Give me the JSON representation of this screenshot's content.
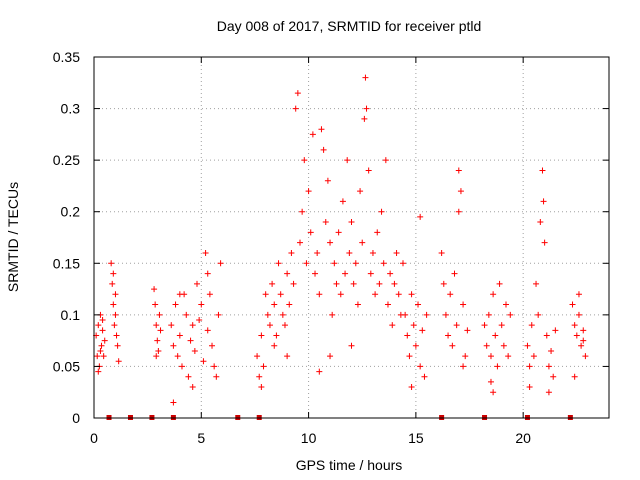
{
  "chart_data": {
    "type": "scatter",
    "title": "Day 008 of 2017, SRMTID for receiver ptld",
    "xlabel": "GPS time / hours",
    "ylabel": "SRMTID / TECUs",
    "xlim": [
      0,
      24
    ],
    "ylim": [
      0,
      0.35
    ],
    "x_ticks": [
      0,
      5,
      10,
      15,
      20
    ],
    "x_tick_labels": [
      "0",
      "5",
      "10",
      "15",
      "20"
    ],
    "y_ticks": [
      0,
      0.05,
      0.1,
      0.15,
      0.2,
      0.25,
      0.3,
      0.35
    ],
    "y_tick_labels": [
      "0",
      "0.05",
      "0.1",
      "0.15",
      "0.2",
      "0.25",
      "0.3",
      "0.35"
    ],
    "grid": true,
    "marker": "+",
    "marker_color": "#ff0000",
    "gap_marker_color": "#cc0000",
    "gap_markers_x": [
      0.7,
      1.7,
      2.7,
      3.7,
      6.7,
      7.7,
      16.2,
      18.2,
      20.2,
      22.2
    ],
    "series": [
      {
        "points": [
          [
            0.1,
            0.08
          ],
          [
            0.15,
            0.06
          ],
          [
            0.2,
            0.09
          ],
          [
            0.25,
            0.05
          ],
          [
            0.3,
            0.1
          ],
          [
            0.35,
            0.07
          ],
          [
            0.4,
            0.085
          ],
          [
            0.45,
            0.06
          ],
          [
            0.5,
            0.075
          ],
          [
            0.2,
            0.045
          ],
          [
            0.3,
            0.065
          ],
          [
            0.4,
            0.095
          ],
          [
            0.8,
            0.15
          ],
          [
            0.85,
            0.13
          ],
          [
            0.9,
            0.11
          ],
          [
            0.95,
            0.09
          ],
          [
            1.0,
            0.12
          ],
          [
            1.05,
            0.08
          ],
          [
            1.1,
            0.07
          ],
          [
            1.15,
            0.055
          ],
          [
            0.9,
            0.14
          ],
          [
            1.0,
            0.1
          ],
          [
            2.8,
            0.125
          ],
          [
            2.85,
            0.11
          ],
          [
            2.9,
            0.09
          ],
          [
            2.95,
            0.075
          ],
          [
            3.0,
            0.065
          ],
          [
            3.05,
            0.1
          ],
          [
            3.1,
            0.085
          ],
          [
            2.9,
            0.06
          ],
          [
            3.6,
            0.09
          ],
          [
            3.7,
            0.07
          ],
          [
            3.8,
            0.11
          ],
          [
            3.9,
            0.06
          ],
          [
            4.0,
            0.08
          ],
          [
            4.1,
            0.05
          ],
          [
            4.2,
            0.12
          ],
          [
            4.3,
            0.1
          ],
          [
            4.4,
            0.04
          ],
          [
            4.5,
            0.075
          ],
          [
            4.6,
            0.09
          ],
          [
            4.7,
            0.065
          ],
          [
            4.8,
            0.13
          ],
          [
            4.9,
            0.095
          ],
          [
            5.0,
            0.11
          ],
          [
            5.1,
            0.055
          ],
          [
            5.2,
            0.16
          ],
          [
            5.3,
            0.085
          ],
          [
            5.4,
            0.12
          ],
          [
            5.5,
            0.07
          ],
          [
            5.6,
            0.05
          ],
          [
            5.7,
            0.04
          ],
          [
            5.8,
            0.1
          ],
          [
            5.9,
            0.15
          ],
          [
            3.7,
            0.015
          ],
          [
            4.6,
            0.03
          ],
          [
            5.3,
            0.14
          ],
          [
            4.0,
            0.12
          ],
          [
            7.6,
            0.06
          ],
          [
            7.7,
            0.04
          ],
          [
            7.8,
            0.08
          ],
          [
            7.9,
            0.05
          ],
          [
            8.0,
            0.12
          ],
          [
            8.1,
            0.1
          ],
          [
            8.2,
            0.09
          ],
          [
            8.3,
            0.13
          ],
          [
            8.4,
            0.11
          ],
          [
            8.5,
            0.08
          ],
          [
            8.6,
            0.15
          ],
          [
            8.7,
            0.12
          ],
          [
            8.8,
            0.1
          ],
          [
            8.9,
            0.09
          ],
          [
            9.0,
            0.14
          ],
          [
            9.1,
            0.11
          ],
          [
            9.2,
            0.16
          ],
          [
            9.3,
            0.13
          ],
          [
            9.4,
            0.3
          ],
          [
            9.5,
            0.315
          ],
          [
            9.6,
            0.17
          ],
          [
            9.7,
            0.2
          ],
          [
            9.8,
            0.25
          ],
          [
            9.9,
            0.15
          ],
          [
            10.0,
            0.22
          ],
          [
            10.1,
            0.18
          ],
          [
            10.2,
            0.275
          ],
          [
            10.3,
            0.14
          ],
          [
            10.4,
            0.16
          ],
          [
            10.5,
            0.12
          ],
          [
            10.6,
            0.28
          ],
          [
            10.7,
            0.26
          ],
          [
            10.8,
            0.19
          ],
          [
            10.9,
            0.23
          ],
          [
            11.0,
            0.17
          ],
          [
            11.1,
            0.1
          ],
          [
            11.2,
            0.15
          ],
          [
            11.3,
            0.13
          ],
          [
            11.4,
            0.18
          ],
          [
            11.5,
            0.12
          ],
          [
            11.6,
            0.21
          ],
          [
            11.7,
            0.14
          ],
          [
            11.8,
            0.25
          ],
          [
            11.9,
            0.16
          ],
          [
            12.0,
            0.19
          ],
          [
            12.1,
            0.13
          ],
          [
            12.2,
            0.15
          ],
          [
            12.3,
            0.11
          ],
          [
            12.4,
            0.22
          ],
          [
            12.5,
            0.17
          ],
          [
            12.6,
            0.29
          ],
          [
            12.65,
            0.33
          ],
          [
            12.7,
            0.3
          ],
          [
            12.8,
            0.24
          ],
          [
            12.9,
            0.14
          ],
          [
            13.0,
            0.16
          ],
          [
            13.1,
            0.12
          ],
          [
            13.2,
            0.18
          ],
          [
            13.3,
            0.13
          ],
          [
            13.4,
            0.2
          ],
          [
            13.5,
            0.15
          ],
          [
            13.6,
            0.25
          ],
          [
            13.7,
            0.11
          ],
          [
            13.8,
            0.14
          ],
          [
            13.9,
            0.09
          ],
          [
            14.0,
            0.13
          ],
          [
            14.1,
            0.16
          ],
          [
            14.2,
            0.12
          ],
          [
            14.3,
            0.1
          ],
          [
            14.4,
            0.15
          ],
          [
            10.5,
            0.045
          ],
          [
            11.0,
            0.06
          ],
          [
            12.0,
            0.07
          ],
          [
            9.0,
            0.06
          ],
          [
            8.4,
            0.07
          ],
          [
            7.8,
            0.03
          ],
          [
            14.5,
            0.1
          ],
          [
            14.6,
            0.08
          ],
          [
            14.7,
            0.06
          ],
          [
            14.8,
            0.12
          ],
          [
            14.9,
            0.09
          ],
          [
            15.0,
            0.07
          ],
          [
            15.1,
            0.11
          ],
          [
            15.2,
            0.05
          ],
          [
            15.3,
            0.085
          ],
          [
            15.4,
            0.04
          ],
          [
            15.5,
            0.1
          ],
          [
            15.2,
            0.195
          ],
          [
            14.8,
            0.03
          ],
          [
            16.2,
            0.16
          ],
          [
            16.3,
            0.13
          ],
          [
            16.4,
            0.1
          ],
          [
            16.5,
            0.08
          ],
          [
            16.6,
            0.12
          ],
          [
            16.7,
            0.07
          ],
          [
            16.8,
            0.14
          ],
          [
            16.9,
            0.09
          ],
          [
            17.0,
            0.24
          ],
          [
            17.1,
            0.22
          ],
          [
            17.0,
            0.2
          ],
          [
            17.2,
            0.11
          ],
          [
            17.3,
            0.06
          ],
          [
            17.4,
            0.085
          ],
          [
            17.2,
            0.05
          ],
          [
            18.2,
            0.09
          ],
          [
            18.3,
            0.07
          ],
          [
            18.4,
            0.1
          ],
          [
            18.5,
            0.06
          ],
          [
            18.6,
            0.12
          ],
          [
            18.7,
            0.08
          ],
          [
            18.8,
            0.05
          ],
          [
            18.9,
            0.13
          ],
          [
            19.0,
            0.09
          ],
          [
            19.1,
            0.07
          ],
          [
            19.2,
            0.11
          ],
          [
            19.3,
            0.06
          ],
          [
            19.4,
            0.1
          ],
          [
            18.6,
            0.025
          ],
          [
            18.5,
            0.035
          ],
          [
            20.2,
            0.07
          ],
          [
            20.3,
            0.05
          ],
          [
            20.4,
            0.09
          ],
          [
            20.5,
            0.06
          ],
          [
            20.6,
            0.13
          ],
          [
            20.7,
            0.1
          ],
          [
            20.8,
            0.19
          ],
          [
            20.9,
            0.24
          ],
          [
            20.95,
            0.21
          ],
          [
            21.0,
            0.17
          ],
          [
            21.1,
            0.08
          ],
          [
            21.2,
            0.05
          ],
          [
            21.3,
            0.065
          ],
          [
            21.4,
            0.04
          ],
          [
            21.5,
            0.085
          ],
          [
            20.3,
            0.03
          ],
          [
            21.2,
            0.025
          ],
          [
            22.3,
            0.11
          ],
          [
            22.4,
            0.09
          ],
          [
            22.5,
            0.08
          ],
          [
            22.6,
            0.1
          ],
          [
            22.7,
            0.07
          ],
          [
            22.8,
            0.085
          ],
          [
            22.9,
            0.06
          ],
          [
            22.4,
            0.04
          ],
          [
            22.6,
            0.12
          ],
          [
            22.8,
            0.075
          ]
        ]
      }
    ]
  }
}
